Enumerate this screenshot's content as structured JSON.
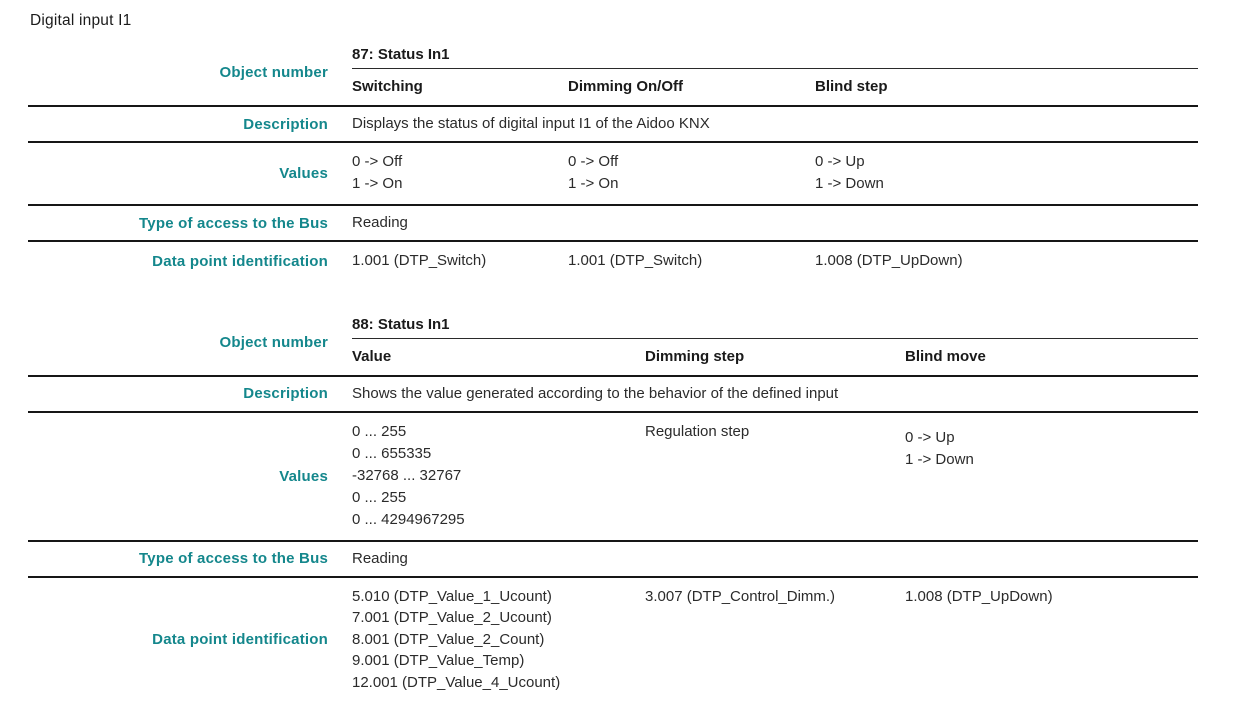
{
  "page": {
    "title": "Digital input I1"
  },
  "colors": {
    "label_teal": "#14878C",
    "text": "#2b2b2b",
    "rule": "#161616"
  },
  "row_labels": {
    "object_number": "Object number",
    "description": "Description",
    "values": "Values",
    "access": "Type of access to the Bus",
    "datapoint": "Data point identification"
  },
  "tables": [
    {
      "object_number": "87: Status In1",
      "columns": [
        "Switching",
        "Dimming On/Off",
        "Blind step"
      ],
      "description": "Displays the status of digital input I1 of the Aidoo KNX",
      "values": [
        [
          "0 -> Off",
          "1 -> On"
        ],
        [
          "0 -> Off",
          "1 -> On"
        ],
        [
          "0 -> Up",
          "1 -> Down"
        ]
      ],
      "access": "Reading",
      "datapoints": [
        [
          "1.001 (DTP_Switch)"
        ],
        [
          "1.001 (DTP_Switch)"
        ],
        [
          "1.008 (DTP_UpDown)"
        ]
      ]
    },
    {
      "object_number": "88: Status In1",
      "columns": [
        "Value",
        "Dimming step",
        "Blind move"
      ],
      "description": "Shows the value generated according to the behavior of the defined input",
      "values": [
        [
          "0 ... 255",
          "0 ... 655335",
          "-32768 ... 32767",
          "0 ... 255",
          "0 ... 4294967295"
        ],
        [
          "Regulation step"
        ],
        [
          "0 -> Up",
          "1 -> Down"
        ]
      ],
      "access": "Reading",
      "datapoints": [
        [
          "5.010 (DTP_Value_1_Ucount)",
          "7.001 (DTP_Value_2_Ucount)",
          "8.001 (DTP_Value_2_Count)",
          "9.001 (DTP_Value_Temp)",
          "12.001 (DTP_Value_4_Ucount)"
        ],
        [
          "3.007 (DTP_Control_Dimm.)"
        ],
        [
          "1.008 (DTP_UpDown)"
        ]
      ]
    }
  ]
}
